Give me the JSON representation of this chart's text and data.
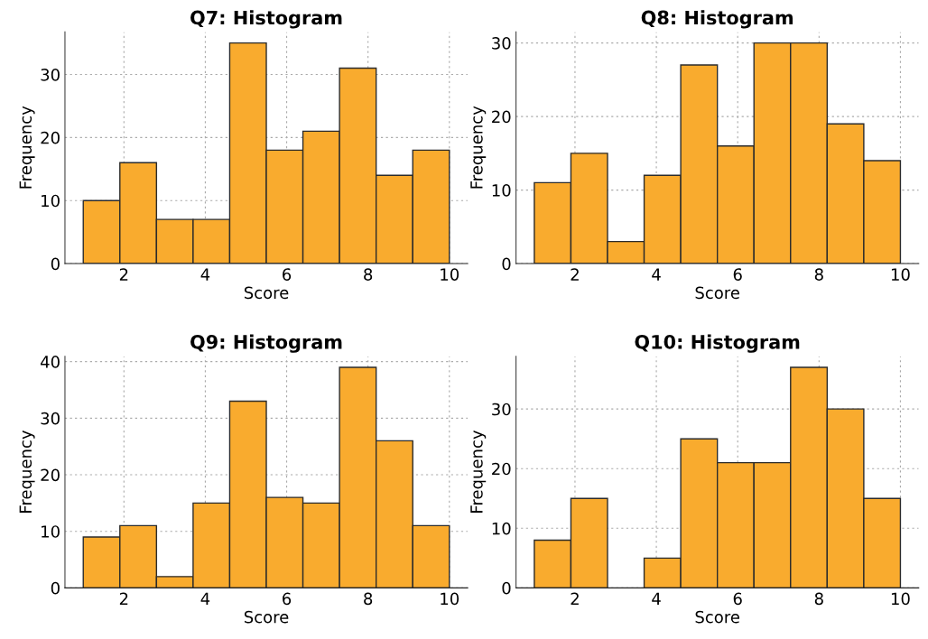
{
  "chart_data": [
    {
      "type": "histogram",
      "title": "Q7: Histogram",
      "xlabel": "Score",
      "ylabel": "Frequency",
      "bins": [
        1,
        1.9,
        2.8,
        3.7,
        4.6,
        5.5,
        6.4,
        7.3,
        8.2,
        9.1,
        10
      ],
      "values": [
        10,
        16,
        7,
        7,
        35,
        18,
        21,
        31,
        14,
        18
      ],
      "color": "#f9ab2e",
      "xlim": [
        0.55,
        10.45
      ],
      "ylim": [
        0,
        36.75
      ],
      "xticks": [
        2,
        4,
        6,
        8,
        10
      ],
      "yticks": [
        0,
        10,
        20,
        30
      ],
      "grid": true
    },
    {
      "type": "histogram",
      "title": "Q8: Histogram",
      "xlabel": "Score",
      "ylabel": "Frequency",
      "bins": [
        1,
        1.9,
        2.8,
        3.7,
        4.6,
        5.5,
        6.4,
        7.3,
        8.2,
        9.1,
        10
      ],
      "values": [
        11,
        15,
        3,
        12,
        27,
        16,
        30,
        30,
        19,
        14
      ],
      "color": "#f9ab2e",
      "xlim": [
        0.55,
        10.45
      ],
      "ylim": [
        0,
        31.5
      ],
      "xticks": [
        2,
        4,
        6,
        8,
        10
      ],
      "yticks": [
        0,
        10,
        20,
        30
      ],
      "grid": true
    },
    {
      "type": "histogram",
      "title": "Q9: Histogram",
      "xlabel": "Score",
      "ylabel": "Frequency",
      "bins": [
        1,
        1.9,
        2.8,
        3.7,
        4.6,
        5.5,
        6.4,
        7.3,
        8.2,
        9.1,
        10
      ],
      "values": [
        9,
        11,
        2,
        15,
        33,
        16,
        15,
        39,
        26,
        11
      ],
      "color": "#f9ab2e",
      "xlim": [
        0.55,
        10.45
      ],
      "ylim": [
        0,
        40.95
      ],
      "xticks": [
        2,
        4,
        6,
        8,
        10
      ],
      "yticks": [
        0,
        10,
        20,
        30,
        40
      ],
      "grid": true
    },
    {
      "type": "histogram",
      "title": "Q10: Histogram",
      "xlabel": "Score",
      "ylabel": "Frequency",
      "bins": [
        1,
        1.9,
        2.8,
        3.7,
        4.6,
        5.5,
        6.4,
        7.3,
        8.2,
        9.1,
        10
      ],
      "values": [
        8,
        15,
        0,
        5,
        25,
        21,
        21,
        37,
        30,
        15
      ],
      "color": "#f9ab2e",
      "xlim": [
        0.55,
        10.45
      ],
      "ylim": [
        0,
        38.85
      ],
      "xticks": [
        2,
        4,
        6,
        8,
        10
      ],
      "yticks": [
        0,
        10,
        20,
        30
      ],
      "grid": true
    }
  ]
}
